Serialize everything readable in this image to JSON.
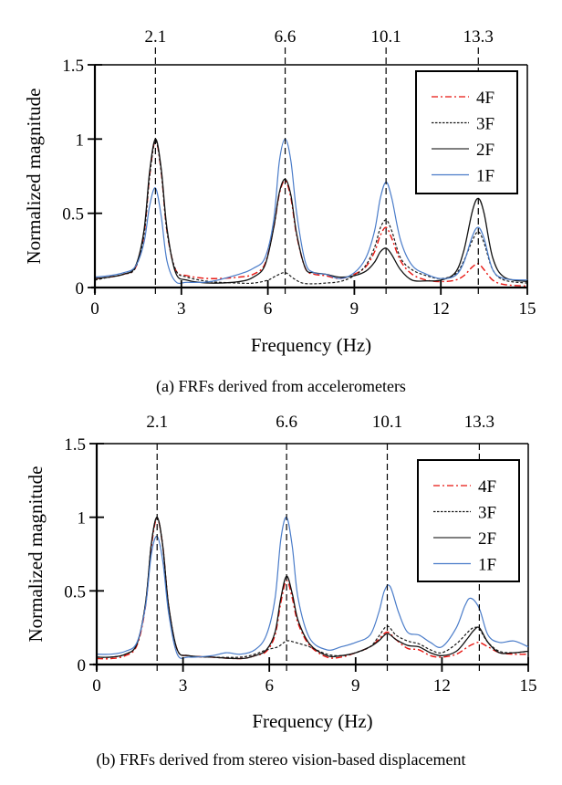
{
  "figure": {
    "panels": [
      {
        "caption": "(a) FRFs derived from accelerometers"
      },
      {
        "caption": "(b) FRFs derived from stereo vision-based displacement"
      }
    ]
  },
  "chart_data": [
    {
      "type": "line",
      "title": "(a) FRFs derived from accelerometers",
      "xlabel": "Frequency (Hz)",
      "ylabel": "Normalized magnitude",
      "xlim": [
        0,
        15
      ],
      "ylim": [
        0,
        1.5
      ],
      "xticks": [
        0,
        3,
        6,
        9,
        12,
        15
      ],
      "xtick_labels": [
        "0",
        "3",
        "6",
        "9",
        "12",
        "15"
      ],
      "yticks": [
        0,
        0.5,
        1,
        1.5
      ],
      "ytick_labels": [
        "0",
        "0.5",
        "1",
        "1.5"
      ],
      "grid": false,
      "legend_position": "top-right",
      "reference_lines": [
        {
          "x": 2.1,
          "label": "2.1"
        },
        {
          "x": 6.6,
          "label": "6.6"
        },
        {
          "x": 10.1,
          "label": "10.1"
        },
        {
          "x": 13.3,
          "label": "13.3"
        }
      ],
      "series": [
        {
          "name": "4F",
          "color": "#e8140f",
          "style": "dash-dot",
          "x": [
            0,
            0.5,
            1,
            1.4,
            1.7,
            1.9,
            2.1,
            2.3,
            2.5,
            2.8,
            3.2,
            4,
            5,
            5.5,
            5.9,
            6.2,
            6.4,
            6.6,
            6.8,
            7.0,
            7.3,
            7.6,
            8.0,
            8.5,
            9.0,
            9.4,
            9.7,
            9.9,
            10.1,
            10.3,
            10.6,
            11.0,
            11.5,
            12.0,
            12.5,
            12.8,
            13.1,
            13.3,
            13.5,
            13.8,
            14.2,
            15
          ],
          "y": [
            0.06,
            0.07,
            0.09,
            0.13,
            0.35,
            0.75,
            0.99,
            0.78,
            0.38,
            0.12,
            0.08,
            0.06,
            0.07,
            0.09,
            0.16,
            0.4,
            0.63,
            0.72,
            0.6,
            0.35,
            0.13,
            0.09,
            0.08,
            0.06,
            0.09,
            0.14,
            0.24,
            0.35,
            0.405,
            0.33,
            0.18,
            0.09,
            0.05,
            0.04,
            0.05,
            0.08,
            0.14,
            0.16,
            0.12,
            0.05,
            0.02,
            0.01
          ]
        },
        {
          "name": "3F",
          "color": "#1a1a1a",
          "style": "dashed",
          "x": [
            0,
            0.5,
            1,
            1.4,
            1.7,
            1.9,
            2.1,
            2.3,
            2.5,
            2.8,
            3.2,
            4,
            5,
            5.5,
            6.0,
            6.3,
            6.6,
            6.9,
            7.2,
            7.6,
            8.0,
            8.5,
            9.0,
            9.4,
            9.7,
            9.9,
            10.1,
            10.3,
            10.6,
            11.0,
            11.5,
            12.0,
            12.5,
            12.8,
            13.1,
            13.3,
            13.5,
            13.8,
            14.2,
            15
          ],
          "y": [
            0.05,
            0.07,
            0.09,
            0.13,
            0.35,
            0.75,
            0.99,
            0.78,
            0.38,
            0.12,
            0.07,
            0.04,
            0.03,
            0.03,
            0.05,
            0.08,
            0.1,
            0.06,
            0.03,
            0.025,
            0.03,
            0.04,
            0.08,
            0.15,
            0.27,
            0.4,
            0.455,
            0.38,
            0.2,
            0.12,
            0.08,
            0.06,
            0.09,
            0.18,
            0.32,
            0.375,
            0.3,
            0.12,
            0.05,
            0.03
          ]
        },
        {
          "name": "2F",
          "color": "#111111",
          "style": "solid",
          "x": [
            0,
            0.5,
            1,
            1.4,
            1.7,
            1.9,
            2.1,
            2.3,
            2.5,
            2.8,
            3.2,
            4,
            5,
            5.5,
            5.9,
            6.2,
            6.4,
            6.6,
            6.8,
            7.0,
            7.3,
            7.6,
            8.0,
            8.5,
            9.0,
            9.4,
            9.7,
            9.9,
            10.1,
            10.3,
            10.6,
            11.0,
            11.5,
            12.0,
            12.5,
            12.8,
            13.1,
            13.3,
            13.5,
            13.8,
            14.2,
            15
          ],
          "y": [
            0.06,
            0.07,
            0.09,
            0.14,
            0.38,
            0.78,
            1.0,
            0.8,
            0.4,
            0.1,
            0.05,
            0.03,
            0.04,
            0.07,
            0.15,
            0.4,
            0.64,
            0.73,
            0.62,
            0.36,
            0.13,
            0.1,
            0.09,
            0.07,
            0.08,
            0.11,
            0.17,
            0.24,
            0.265,
            0.22,
            0.12,
            0.05,
            0.045,
            0.05,
            0.1,
            0.25,
            0.52,
            0.6,
            0.5,
            0.2,
            0.07,
            0.04
          ]
        },
        {
          "name": "1F",
          "color": "#4a7cc9",
          "style": "solid",
          "x": [
            0,
            0.5,
            1,
            1.4,
            1.7,
            1.9,
            2.1,
            2.3,
            2.5,
            2.8,
            3.2,
            4,
            5,
            5.5,
            5.9,
            6.2,
            6.4,
            6.6,
            6.8,
            7.0,
            7.3,
            7.6,
            8.0,
            8.5,
            9.0,
            9.4,
            9.7,
            9.9,
            10.1,
            10.3,
            10.6,
            11.0,
            11.5,
            12.0,
            12.5,
            12.8,
            13.1,
            13.3,
            13.5,
            13.8,
            14.2,
            15
          ],
          "y": [
            0.07,
            0.08,
            0.1,
            0.14,
            0.3,
            0.55,
            0.67,
            0.48,
            0.18,
            0.04,
            0.035,
            0.04,
            0.09,
            0.13,
            0.2,
            0.45,
            0.85,
            1.0,
            0.85,
            0.5,
            0.17,
            0.1,
            0.09,
            0.06,
            0.1,
            0.2,
            0.38,
            0.6,
            0.71,
            0.6,
            0.32,
            0.15,
            0.09,
            0.06,
            0.08,
            0.17,
            0.35,
            0.405,
            0.33,
            0.12,
            0.06,
            0.05
          ]
        }
      ]
    },
    {
      "type": "line",
      "title": "(b) FRFs derived from stereo vision-based displacement",
      "xlabel": "Frequency (Hz)",
      "ylabel": "Normalized magnitude",
      "xlim": [
        0,
        15
      ],
      "ylim": [
        0,
        1.5
      ],
      "xticks": [
        0,
        3,
        6,
        9,
        12,
        15
      ],
      "xtick_labels": [
        "0",
        "3",
        "6",
        "9",
        "12",
        "15"
      ],
      "yticks": [
        0,
        0.5,
        1,
        1.5
      ],
      "ytick_labels": [
        "0",
        "0.5",
        "1",
        "1.5"
      ],
      "grid": false,
      "legend_position": "top-right",
      "reference_lines": [
        {
          "x": 2.1,
          "label": "2.1"
        },
        {
          "x": 6.6,
          "label": "6.6"
        },
        {
          "x": 10.1,
          "label": "10.1"
        },
        {
          "x": 13.3,
          "label": "13.3"
        }
      ],
      "series": [
        {
          "name": "4F",
          "color": "#e8140f",
          "style": "dash-dot",
          "x": [
            0,
            0.5,
            1,
            1.4,
            1.7,
            1.9,
            2.1,
            2.3,
            2.5,
            2.8,
            3.2,
            4,
            5,
            5.5,
            5.9,
            6.2,
            6.4,
            6.6,
            6.8,
            7.0,
            7.4,
            8.0,
            8.5,
            9.0,
            9.5,
            9.8,
            10.1,
            10.4,
            10.8,
            11.2,
            11.6,
            12.0,
            12.5,
            12.9,
            13.1,
            13.3,
            13.6,
            14.0,
            14.5,
            15
          ],
          "y": [
            0.04,
            0.04,
            0.06,
            0.13,
            0.4,
            0.8,
            0.99,
            0.8,
            0.4,
            0.1,
            0.06,
            0.05,
            0.04,
            0.06,
            0.09,
            0.2,
            0.42,
            0.57,
            0.45,
            0.28,
            0.13,
            0.05,
            0.05,
            0.08,
            0.12,
            0.17,
            0.22,
            0.17,
            0.11,
            0.1,
            0.06,
            0.05,
            0.07,
            0.12,
            0.14,
            0.15,
            0.12,
            0.08,
            0.07,
            0.07
          ]
        },
        {
          "name": "3F",
          "color": "#1a1a1a",
          "style": "dashed",
          "x": [
            0,
            0.5,
            1,
            1.4,
            1.7,
            1.9,
            2.1,
            2.3,
            2.5,
            2.8,
            3.2,
            4,
            5,
            5.5,
            5.9,
            6.3,
            6.6,
            6.9,
            7.4,
            8.0,
            8.5,
            9.0,
            9.5,
            9.8,
            10.1,
            10.4,
            10.8,
            11.2,
            11.6,
            12.0,
            12.5,
            12.9,
            13.1,
            13.3,
            13.6,
            14.0,
            14.5,
            15
          ],
          "y": [
            0.05,
            0.05,
            0.07,
            0.14,
            0.42,
            0.82,
            1.0,
            0.8,
            0.4,
            0.1,
            0.06,
            0.05,
            0.05,
            0.07,
            0.1,
            0.12,
            0.16,
            0.15,
            0.12,
            0.07,
            0.06,
            0.08,
            0.12,
            0.19,
            0.26,
            0.2,
            0.16,
            0.14,
            0.1,
            0.08,
            0.14,
            0.22,
            0.25,
            0.24,
            0.15,
            0.09,
            0.08,
            0.09
          ]
        },
        {
          "name": "2F",
          "color": "#111111",
          "style": "solid",
          "x": [
            0,
            0.5,
            1,
            1.4,
            1.7,
            1.9,
            2.1,
            2.3,
            2.5,
            2.8,
            3.2,
            4,
            5,
            5.5,
            5.9,
            6.2,
            6.4,
            6.6,
            6.8,
            7.0,
            7.4,
            8.0,
            8.5,
            9.0,
            9.5,
            9.8,
            10.1,
            10.4,
            10.8,
            11.2,
            11.6,
            12.0,
            12.5,
            12.9,
            13.1,
            13.3,
            13.6,
            14.0,
            14.5,
            15
          ],
          "y": [
            0.05,
            0.05,
            0.07,
            0.14,
            0.42,
            0.82,
            1.0,
            0.8,
            0.4,
            0.1,
            0.06,
            0.05,
            0.04,
            0.06,
            0.1,
            0.22,
            0.45,
            0.6,
            0.48,
            0.3,
            0.14,
            0.06,
            0.06,
            0.08,
            0.12,
            0.16,
            0.21,
            0.17,
            0.13,
            0.12,
            0.08,
            0.06,
            0.09,
            0.18,
            0.23,
            0.25,
            0.15,
            0.08,
            0.08,
            0.09
          ]
        },
        {
          "name": "1F",
          "color": "#4a7cc9",
          "style": "solid",
          "x": [
            0,
            0.5,
            1,
            1.4,
            1.7,
            1.9,
            2.1,
            2.3,
            2.5,
            2.8,
            3.2,
            4,
            4.5,
            5,
            5.5,
            5.9,
            6.2,
            6.4,
            6.6,
            6.8,
            7.0,
            7.4,
            8.0,
            8.5,
            9.0,
            9.5,
            9.8,
            10.0,
            10.2,
            10.5,
            10.8,
            11.2,
            11.6,
            12.0,
            12.5,
            12.8,
            13.0,
            13.3,
            13.6,
            14.0,
            14.5,
            15
          ],
          "y": [
            0.07,
            0.07,
            0.09,
            0.15,
            0.4,
            0.75,
            0.87,
            0.7,
            0.35,
            0.07,
            0.05,
            0.06,
            0.08,
            0.07,
            0.1,
            0.2,
            0.45,
            0.85,
            1.0,
            0.8,
            0.45,
            0.18,
            0.1,
            0.12,
            0.15,
            0.2,
            0.35,
            0.5,
            0.53,
            0.35,
            0.22,
            0.2,
            0.15,
            0.12,
            0.25,
            0.4,
            0.45,
            0.38,
            0.2,
            0.15,
            0.16,
            0.12
          ]
        }
      ]
    }
  ]
}
